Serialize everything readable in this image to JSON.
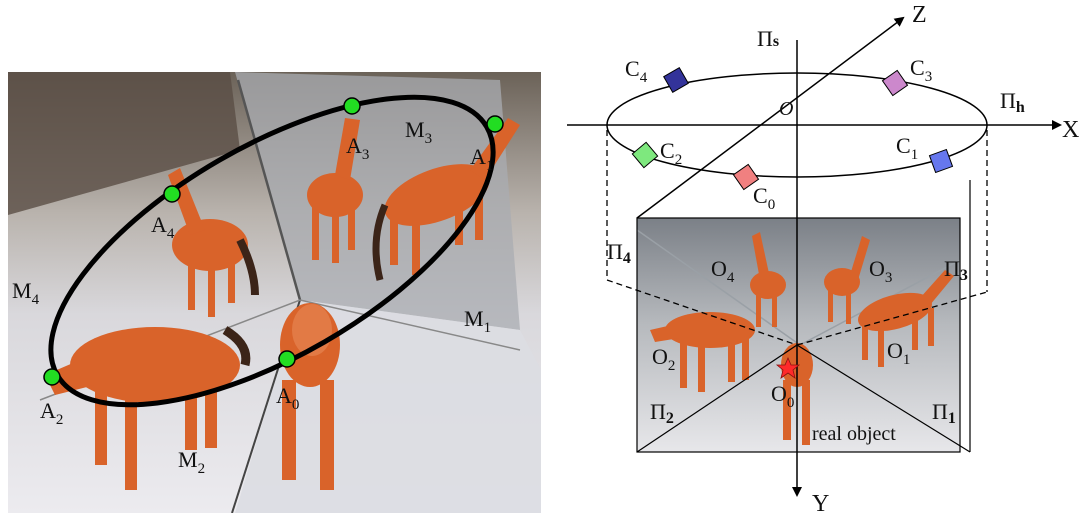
{
  "left_panel": {
    "points": [
      {
        "name": "A",
        "sub": "0"
      },
      {
        "name": "A",
        "sub": "1"
      },
      {
        "name": "A",
        "sub": "2"
      },
      {
        "name": "A",
        "sub": "3"
      },
      {
        "name": "A",
        "sub": "4"
      }
    ],
    "mirrors": [
      {
        "name": "M",
        "sub": "1"
      },
      {
        "name": "M",
        "sub": "2"
      },
      {
        "name": "M",
        "sub": "3"
      },
      {
        "name": "M",
        "sub": "4"
      }
    ]
  },
  "right_panel": {
    "axes": {
      "x": "X",
      "y": "Y",
      "z": "Z",
      "origin": "O"
    },
    "planes": [
      {
        "name": "Π",
        "sub": "s"
      },
      {
        "name": "Π",
        "sub": "h"
      },
      {
        "name": "Π",
        "sub": "1"
      },
      {
        "name": "Π",
        "sub": "2"
      },
      {
        "name": "Π",
        "sub": "3"
      },
      {
        "name": "Π",
        "sub": "4"
      }
    ],
    "cameras": [
      {
        "name": "C",
        "sub": "0",
        "color": "#f08080"
      },
      {
        "name": "C",
        "sub": "1",
        "color": "#6677ee"
      },
      {
        "name": "C",
        "sub": "2",
        "color": "#7ee87e"
      },
      {
        "name": "C",
        "sub": "3",
        "color": "#cc88cc"
      },
      {
        "name": "C",
        "sub": "4",
        "color": "#33339a"
      }
    ],
    "objects": [
      {
        "name": "O",
        "sub": "0"
      },
      {
        "name": "O",
        "sub": "1"
      },
      {
        "name": "O",
        "sub": "2"
      },
      {
        "name": "O",
        "sub": "3"
      },
      {
        "name": "O",
        "sub": "4"
      }
    ],
    "real_object_label": "real object"
  },
  "colors": {
    "point_fill": "#22dd22",
    "horse": "#d9632a",
    "star": "#ff2a2a"
  }
}
